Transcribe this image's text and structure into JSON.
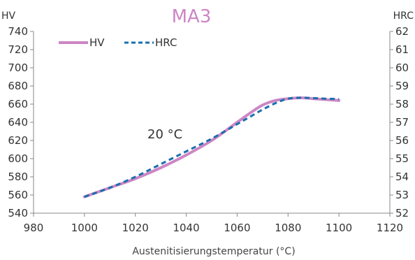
{
  "chart_data": {
    "type": "line",
    "title": "MA3",
    "title_color": "#cc86c4",
    "xlabel": "Austenitisierungstemperatur (°C)",
    "ylabel_left": "HV",
    "ylabel_right": "HRC",
    "xlim": [
      980,
      1120
    ],
    "ylim_left": [
      540,
      740
    ],
    "ylim_right": [
      52,
      62
    ],
    "x_ticks": [
      "980",
      "1000",
      "1020",
      "1040",
      "1060",
      "1080",
      "1100",
      "1120"
    ],
    "y_left_ticks": [
      "540",
      "560",
      "580",
      "600",
      "620",
      "640",
      "660",
      "680",
      "700",
      "720",
      "740"
    ],
    "y_right_ticks": [
      "52",
      "53",
      "54",
      "55",
      "56",
      "57",
      "58",
      "59",
      "60",
      "61",
      "62"
    ],
    "grid": false,
    "legend_position": "top-left",
    "annotation": "20 °C",
    "series": [
      {
        "name": "HV",
        "axis": "left",
        "color": "#cc86c4",
        "style": "solid",
        "x": [
          1000,
          1010,
          1020,
          1030,
          1040,
          1050,
          1060,
          1065,
          1070,
          1075,
          1080,
          1085,
          1090,
          1095,
          1100
        ],
        "y": [
          558,
          568,
          578,
          590,
          604,
          620,
          640,
          650,
          659,
          664,
          666,
          667,
          666,
          665,
          664
        ]
      },
      {
        "name": "HRC",
        "axis": "right",
        "color": "#1a6fae",
        "style": "dashed",
        "x": [
          1000,
          1010,
          1020,
          1030,
          1040,
          1050,
          1060,
          1065,
          1070,
          1075,
          1080,
          1085,
          1090,
          1095,
          1100
        ],
        "y": [
          52.9,
          53.4,
          54.0,
          54.7,
          55.4,
          56.1,
          56.9,
          57.3,
          57.7,
          58.05,
          58.3,
          58.35,
          58.33,
          58.3,
          58.28
        ]
      }
    ]
  }
}
